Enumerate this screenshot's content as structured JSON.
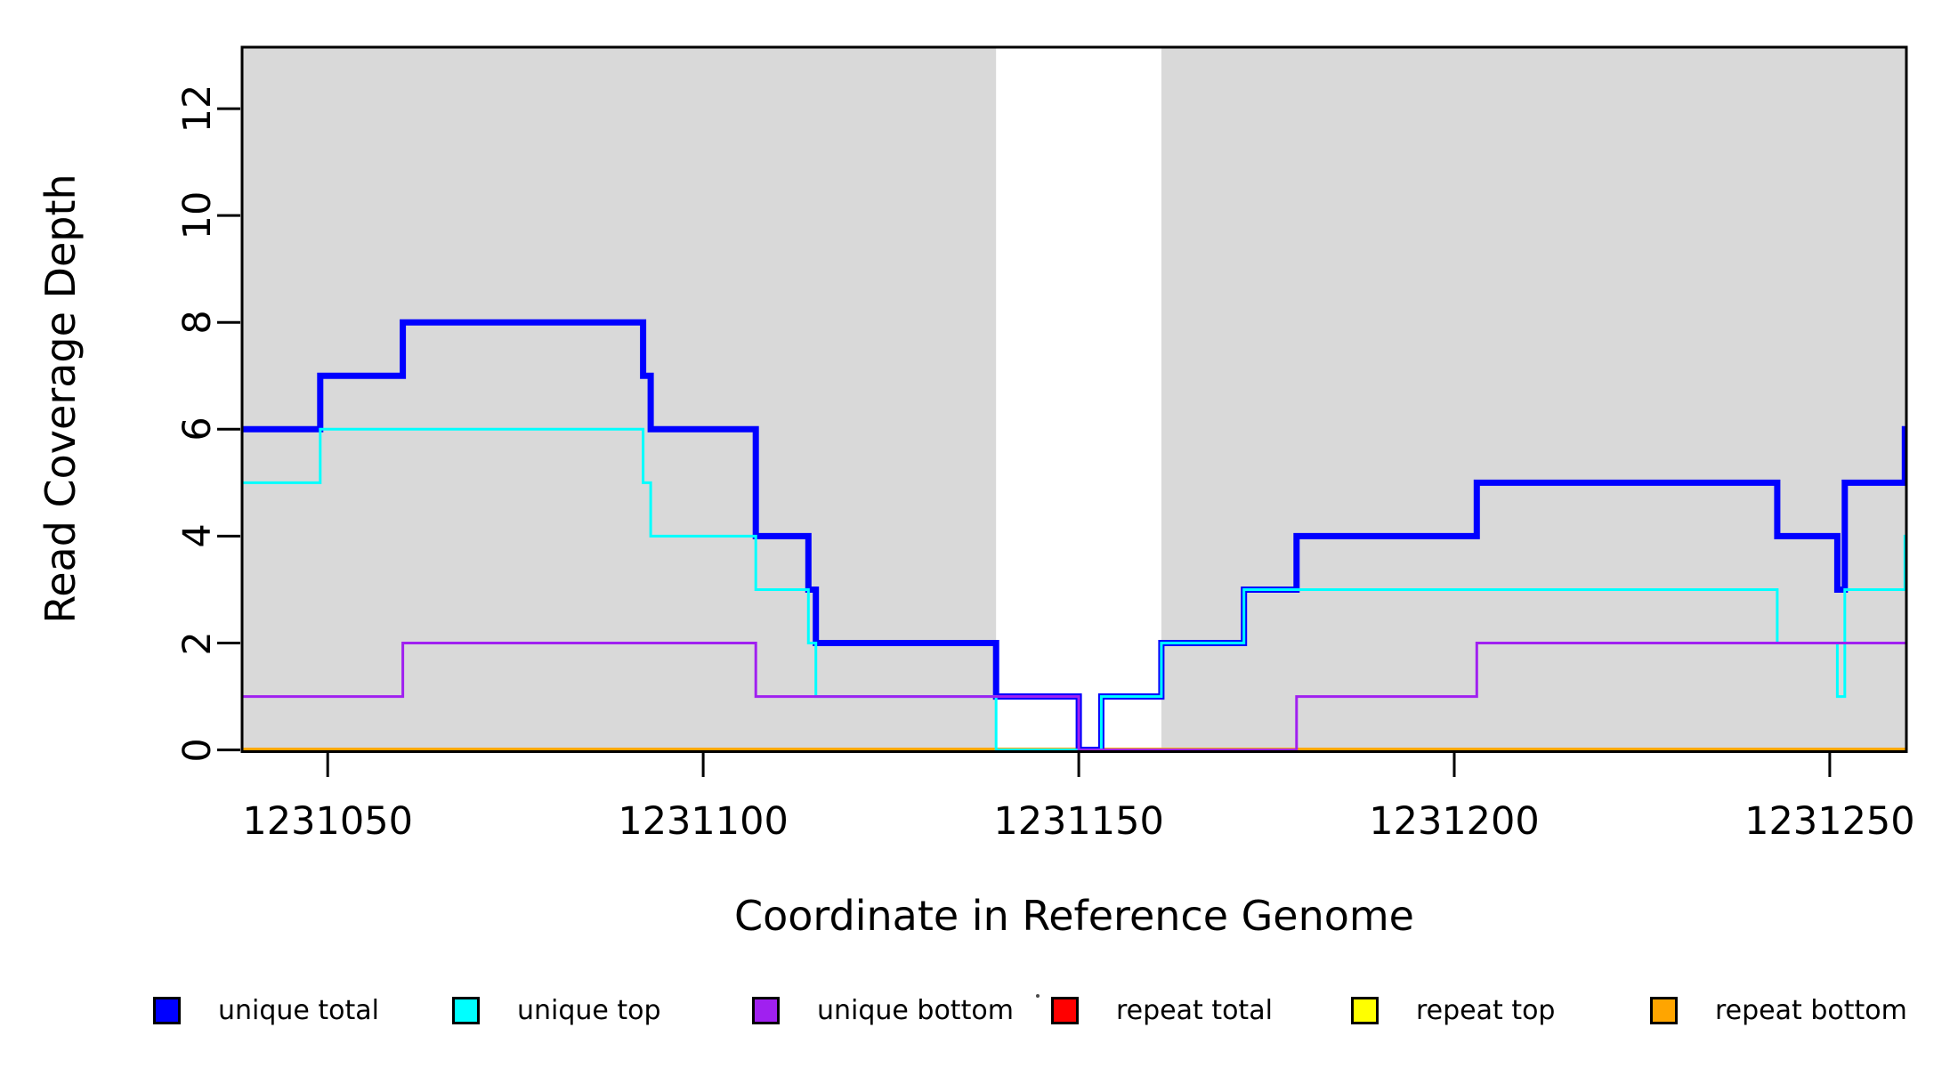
{
  "figure": {
    "title": ""
  },
  "chart_data": {
    "type": "line",
    "line_style": "step",
    "title": "",
    "xlabel": "Coordinate in Reference Genome",
    "ylabel": "Read Coverage Depth",
    "xlim": [
      1231038.6,
      1231260.2
    ],
    "ylim": [
      0,
      13.15
    ],
    "xticks": [
      "1231050",
      "1231100",
      "1231150",
      "1231200",
      "1231250"
    ],
    "xtick_values": [
      1231050,
      1231100,
      1231150,
      1231200,
      1231250
    ],
    "yticks": [
      "0",
      "2",
      "4",
      "6",
      "8",
      "10",
      "12"
    ],
    "ytick_values": [
      0,
      2,
      4,
      6,
      8,
      10,
      12
    ],
    "grid": false,
    "legend_position": "bottom",
    "shading": {
      "color": "#D9D9D9",
      "regions": [
        [
          1231038.6,
          1231139
        ],
        [
          1231161,
          1231260.2
        ]
      ]
    },
    "x_end": 1231260.2,
    "series": [
      {
        "name": "unique total",
        "color": "#0000FF",
        "line_width": 7,
        "steps": [
          [
            1231038.6,
            6
          ],
          [
            1231049,
            7
          ],
          [
            1231060,
            8
          ],
          [
            1231092,
            7
          ],
          [
            1231093,
            6
          ],
          [
            1231107,
            4
          ],
          [
            1231114,
            3
          ],
          [
            1231115,
            2
          ],
          [
            1231139,
            1
          ],
          [
            1231150,
            0
          ],
          [
            1231153,
            1
          ],
          [
            1231161,
            2
          ],
          [
            1231172,
            3
          ],
          [
            1231179,
            4
          ],
          [
            1231203,
            5
          ],
          [
            1231243,
            4
          ],
          [
            1231251,
            3
          ],
          [
            1231252,
            5
          ],
          [
            1231260,
            6
          ]
        ]
      },
      {
        "name": "unique top",
        "color": "#00FFFF",
        "line_width": 3,
        "steps": [
          [
            1231038.6,
            5
          ],
          [
            1231049,
            6
          ],
          [
            1231092,
            5
          ],
          [
            1231093,
            4
          ],
          [
            1231107,
            3
          ],
          [
            1231114,
            2
          ],
          [
            1231115,
            1
          ],
          [
            1231139,
            0
          ],
          [
            1231153,
            1
          ],
          [
            1231161,
            2
          ],
          [
            1231172,
            3
          ],
          [
            1231243,
            2
          ],
          [
            1231251,
            1
          ],
          [
            1231252,
            3
          ],
          [
            1231260,
            4
          ]
        ]
      },
      {
        "name": "unique bottom",
        "color": "#A020F0",
        "line_width": 3,
        "steps": [
          [
            1231038.6,
            1
          ],
          [
            1231060,
            2
          ],
          [
            1231107,
            1
          ],
          [
            1231150,
            0
          ],
          [
            1231179,
            1
          ],
          [
            1231203,
            2
          ]
        ]
      },
      {
        "name": "repeat total",
        "color": "#FF0000",
        "line_width": 3,
        "steps": [
          [
            1231038.6,
            0
          ]
        ]
      },
      {
        "name": "repeat top",
        "color": "#FFFF00",
        "line_width": 3,
        "steps": [
          [
            1231038.6,
            0
          ]
        ]
      },
      {
        "name": "repeat bottom",
        "color": "#FFA500",
        "line_width": 5,
        "steps": [
          [
            1231038.6,
            0
          ]
        ]
      }
    ]
  },
  "legend": {
    "items": [
      {
        "label": "unique total",
        "color": "#0000FF"
      },
      {
        "label": "unique top",
        "color": "#00FFFF"
      },
      {
        "label": "unique bottom",
        "color": "#A020F0"
      },
      {
        "label": "repeat total",
        "color": "#FF0000"
      },
      {
        "label": "repeat top",
        "color": "#FFFF00"
      },
      {
        "label": "repeat bottom",
        "color": "#FFA500"
      }
    ]
  }
}
